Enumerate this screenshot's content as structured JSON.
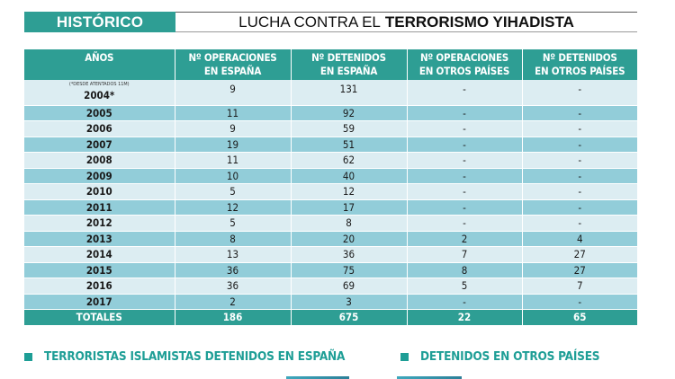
{
  "header": {
    "section_label": "HISTÓRICO",
    "title_regular": "LUCHA CONTRA EL",
    "title_bold": "TERRORISMO YIHADISTA"
  },
  "colors": {
    "teal": "#2e9e94",
    "row_light": "#dcedf2",
    "row_dark": "#92cdd9",
    "legend_text": "#1e9e96"
  },
  "table": {
    "columns": [
      {
        "line1": "AÑOS",
        "line2": ""
      },
      {
        "line1": "Nº OPERACIONES",
        "line2": "EN ESPAÑA"
      },
      {
        "line1": "Nº DETENIDOS",
        "line2": "EN ESPAÑA"
      },
      {
        "line1": "Nº OPERACIONES",
        "line2": "EN OTROS PAÍSES"
      },
      {
        "line1": "Nº DETENIDOS",
        "line2": "EN OTROS PAÍSES"
      }
    ],
    "first_row_note": "(*DESDE ATENTADOS 11M)",
    "rows": [
      {
        "year": "2004*",
        "ops_es": "9",
        "det_es": "131",
        "ops_ext": "-",
        "det_ext": "-"
      },
      {
        "year": "2005",
        "ops_es": "11",
        "det_es": "92",
        "ops_ext": "-",
        "det_ext": "-"
      },
      {
        "year": "2006",
        "ops_es": "9",
        "det_es": "59",
        "ops_ext": "-",
        "det_ext": "-"
      },
      {
        "year": "2007",
        "ops_es": "19",
        "det_es": "51",
        "ops_ext": "-",
        "det_ext": "-"
      },
      {
        "year": "2008",
        "ops_es": "11",
        "det_es": "62",
        "ops_ext": "-",
        "det_ext": "-"
      },
      {
        "year": "2009",
        "ops_es": "10",
        "det_es": "40",
        "ops_ext": "-",
        "det_ext": "-"
      },
      {
        "year": "2010",
        "ops_es": "5",
        "det_es": "12",
        "ops_ext": "-",
        "det_ext": "-"
      },
      {
        "year": "2011",
        "ops_es": "12",
        "det_es": "17",
        "ops_ext": "-",
        "det_ext": "-"
      },
      {
        "year": "2012",
        "ops_es": "5",
        "det_es": "8",
        "ops_ext": "-",
        "det_ext": "-"
      },
      {
        "year": "2013",
        "ops_es": "8",
        "det_es": "20",
        "ops_ext": "2",
        "det_ext": "4"
      },
      {
        "year": "2014",
        "ops_es": "13",
        "det_es": "36",
        "ops_ext": "7",
        "det_ext": "27"
      },
      {
        "year": "2015",
        "ops_es": "36",
        "det_es": "75",
        "ops_ext": "8",
        "det_ext": "27"
      },
      {
        "year": "2016",
        "ops_es": "36",
        "det_es": "69",
        "ops_ext": "5",
        "det_ext": "7"
      },
      {
        "year": "2017",
        "ops_es": "2",
        "det_es": "3",
        "ops_ext": "-",
        "det_ext": "-"
      }
    ],
    "totals": {
      "label": "TOTALES",
      "ops_es": "186",
      "det_es": "675",
      "ops_ext": "22",
      "det_ext": "65"
    }
  },
  "legend": [
    {
      "label": "TERRORISTAS ISLAMISTAS DETENIDOS EN ESPAÑA"
    },
    {
      "label": "DETENIDOS EN OTROS PAÍSES"
    }
  ]
}
